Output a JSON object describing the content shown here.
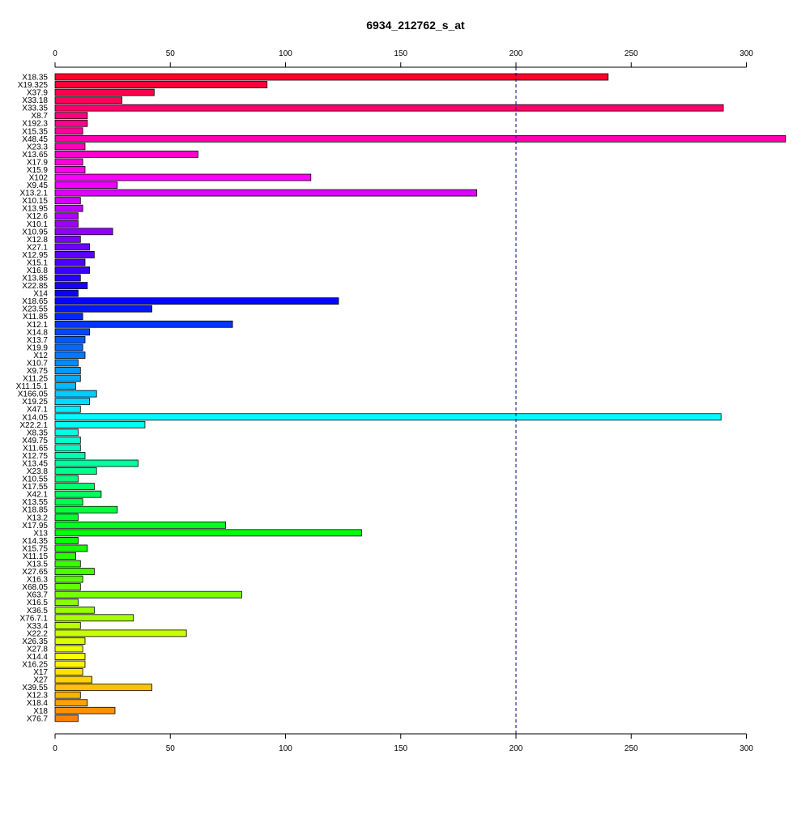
{
  "chart_data": {
    "type": "bar",
    "orientation": "horizontal",
    "title": "6934_212762_s_at",
    "xlabel": "",
    "ylabel": "",
    "xlim": [
      0,
      317
    ],
    "x_ticks": [
      0,
      50,
      100,
      150,
      200,
      250,
      300
    ],
    "reference_line": 200,
    "categories": [
      "X18.35",
      "X19.325",
      "X37.9",
      "X33.18",
      "X33.35",
      "X8.7",
      "X192.3",
      "X15.35",
      "X48.45",
      "X23.3",
      "X13.65",
      "X17.9",
      "X15.9",
      "X102",
      "X9.45",
      "X13.2.1",
      "X10.15",
      "X13.95",
      "X12.6",
      "X10.1",
      "X10.95",
      "X12.8",
      "X27.1",
      "X12.95",
      "X15.1",
      "X16.8",
      "X13.85",
      "X22.85",
      "X14",
      "X18.65",
      "X23.55",
      "X11.85",
      "X12.1",
      "X14.8",
      "X13.7",
      "X19.9",
      "X12",
      "X10.7",
      "X9.75",
      "X11.25",
      "X11.15.1",
      "X166.05",
      "X19.25",
      "X47.1",
      "X14.05",
      "X22.2.1",
      "X8.35",
      "X49.75",
      "X11.65",
      "X12.75",
      "X13.45",
      "X23.8",
      "X10.55",
      "X17.55",
      "X42.1",
      "X13.55",
      "X18.85",
      "X13.2",
      "X17.95",
      "X13",
      "X14.35",
      "X15.75",
      "X11.15",
      "X13.5",
      "X27.65",
      "X16.3",
      "X68.05",
      "X63.7",
      "X16.5",
      "X36.5",
      "X76.7.1",
      "X33.4",
      "X22.2",
      "X26.35",
      "X27.8",
      "X14.4",
      "X16.25",
      "X17",
      "X27",
      "X39.55",
      "X12.3",
      "X18.4",
      "X18",
      "X76.7"
    ],
    "values": [
      240,
      92,
      43,
      29,
      290,
      14,
      14,
      12,
      317,
      13,
      62,
      12,
      13,
      111,
      27,
      183,
      11,
      12,
      10,
      10,
      25,
      11,
      15,
      17,
      13,
      15,
      11,
      14,
      10,
      123,
      42,
      12,
      77,
      15,
      13,
      12,
      13,
      10,
      11,
      11,
      9,
      18,
      15,
      11,
      289,
      39,
      10,
      11,
      11,
      13,
      36,
      18,
      10,
      17,
      20,
      12,
      27,
      10,
      74,
      133,
      10,
      14,
      9,
      11,
      17,
      12,
      11,
      81,
      10,
      17,
      34,
      11,
      57,
      13,
      12,
      13,
      13,
      12,
      16,
      42,
      11,
      14,
      26,
      10
    ],
    "colors": [
      "#FF0029",
      "#FF0039",
      "#FF004A",
      "#FF005A",
      "#FF006A",
      "#FF007B",
      "#FF008B",
      "#FF009B",
      "#FF00AC",
      "#FF00BC",
      "#FF00CD",
      "#FF00DD",
      "#FF00ED",
      "#FF00FE",
      "#F000FF",
      "#DF00FF",
      "#CF00FF",
      "#BF00FF",
      "#AE00FF",
      "#9E00FF",
      "#8E00FF",
      "#7D00FF",
      "#6D00FF",
      "#5C00FF",
      "#4C00FF",
      "#3C00FF",
      "#2B00FF",
      "#1B00FF",
      "#0A00FF",
      "#0006FF",
      "#0017FF",
      "#0027FF",
      "#0038FF",
      "#0048FF",
      "#0058FF",
      "#0069FF",
      "#0079FF",
      "#008AFF",
      "#009AFF",
      "#00AAFF",
      "#00BBFF",
      "#00CBFF",
      "#00DBFF",
      "#00ECFF",
      "#00FCFF",
      "#00FFF1",
      "#00FFE1",
      "#00FFD0",
      "#00FFC0",
      "#00FFB0",
      "#00FF9F",
      "#00FF8F",
      "#00FF7E",
      "#00FF6E",
      "#00FF5E",
      "#00FF4D",
      "#00FF3D",
      "#00FF2C",
      "#00FF1C",
      "#00FF0C",
      "#05FF00",
      "#15FF00",
      "#26FF00",
      "#36FF00",
      "#46FF00",
      "#57FF00",
      "#67FF00",
      "#78FF00",
      "#88FF00",
      "#98FF00",
      "#A9FF00",
      "#B9FF00",
      "#C9FF00",
      "#DAFF00",
      "#EAFF00",
      "#FBFF00",
      "#FFF300",
      "#FFE200",
      "#FFD200",
      "#FFC200",
      "#FFB100",
      "#FFA100",
      "#FF9000",
      "#FF8000"
    ],
    "grid": false,
    "legend": "none"
  }
}
